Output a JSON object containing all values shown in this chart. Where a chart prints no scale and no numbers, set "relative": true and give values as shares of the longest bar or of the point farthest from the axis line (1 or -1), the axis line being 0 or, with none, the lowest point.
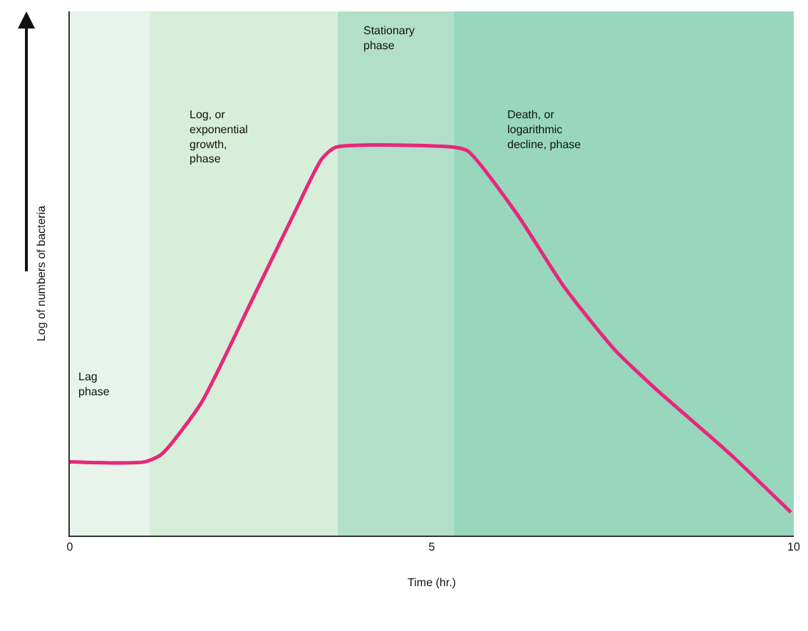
{
  "chart_data": {
    "type": "line",
    "relative": true,
    "xlabel": "Time (hr.)",
    "ylabel": "Log of numbers of bacteria",
    "xlim": [
      0,
      10
    ],
    "xticks": [
      0,
      5,
      10
    ],
    "grid": false,
    "marker": "none",
    "line_style": "solid",
    "series": [
      {
        "color": "#e6287a",
        "x": [
          0,
          1.04,
          1.27,
          1.81,
          2.5,
          3.1,
          3.48,
          3.67,
          5.31,
          5.5,
          6.17,
          6.83,
          7.52,
          8.08,
          9.12,
          9.96
        ],
        "values": [
          0.19,
          0.19,
          0.21,
          0.34,
          0.6,
          0.83,
          0.97,
          1,
          1,
          0.99,
          0.83,
          0.64,
          0.48,
          0.38,
          0.21,
          0.06
        ]
      }
    ],
    "bands": [
      {
        "axis": "x",
        "from": 0,
        "to": 1.1,
        "label": "Lag\nphase",
        "color": "#e8f3ec"
      },
      {
        "axis": "x",
        "from": 1.1,
        "to": 3.7,
        "label": "Log, or\nexponential\ngrowth,\nphase",
        "color": "#d7eed9"
      },
      {
        "axis": "x",
        "from": 3.7,
        "to": 5.3,
        "label": "Stationary\nphase",
        "color": "#b2dfc9"
      },
      {
        "axis": "x",
        "from": 5.3,
        "to": 10,
        "label": "Death, or\nlogarithmic\ndecline, phase",
        "color": "#98d6bd"
      }
    ]
  }
}
